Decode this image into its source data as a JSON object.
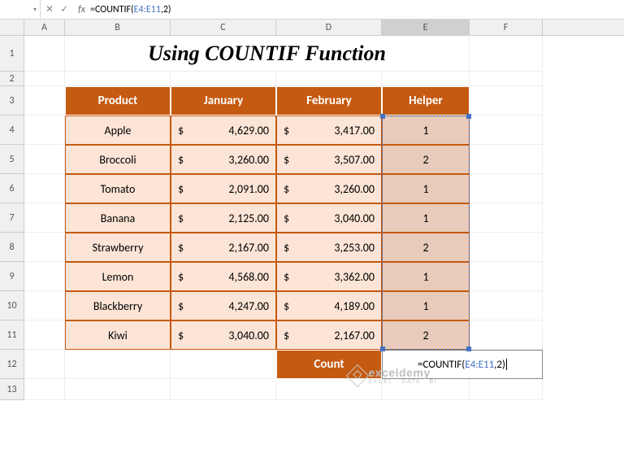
{
  "formula_bar": {
    "prefix": "=COUNTIF(",
    "ref": "E4:E11",
    "suffix": ",2)"
  },
  "columns": [
    "A",
    "B",
    "C",
    "D",
    "E",
    "F"
  ],
  "active_col": "E",
  "title": "Using COUNTIF Function",
  "headers": {
    "product": "Product",
    "jan": "January",
    "feb": "February",
    "helper": "Helper"
  },
  "rows": [
    {
      "product": "Apple",
      "jan": "4,629.00",
      "feb": "3,417.00",
      "helper": "1"
    },
    {
      "product": "Broccoli",
      "jan": "3,260.00",
      "feb": "3,507.00",
      "helper": "2"
    },
    {
      "product": "Tomato",
      "jan": "2,091.00",
      "feb": "3,260.00",
      "helper": "1"
    },
    {
      "product": "Banana",
      "jan": "2,125.00",
      "feb": "3,040.00",
      "helper": "1"
    },
    {
      "product": "Strawberry",
      "jan": "2,167.00",
      "feb": "3,253.00",
      "helper": "2"
    },
    {
      "product": "Lemon",
      "jan": "4,568.00",
      "feb": "3,362.00",
      "helper": "1"
    },
    {
      "product": "Blackberry",
      "jan": "4,247.00",
      "feb": "4,189.00",
      "helper": "1"
    },
    {
      "product": "Kiwi",
      "jan": "3,040.00",
      "feb": "2,167.00",
      "helper": "2"
    }
  ],
  "count_label": "Count",
  "cell_formula": {
    "prefix": "=COUNTIF(",
    "ref": "E4:E11",
    "suffix": ",2)"
  },
  "currency": "$",
  "watermark": {
    "line1": "exceldemy",
    "line2": "EXCEL · DATA · BI"
  },
  "colors": {
    "header_bg": "#c55a11",
    "data_bg": "#fce4d6",
    "helper_bg": "#e8cbba",
    "ref_color": "#4472c4"
  }
}
